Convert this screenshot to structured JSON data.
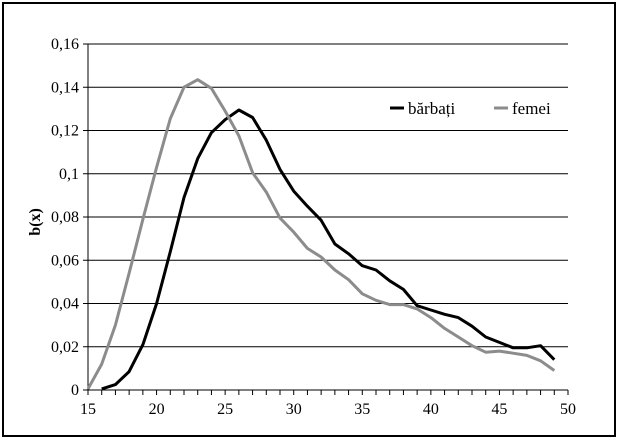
{
  "chart_data": {
    "type": "line",
    "title": "",
    "xlabel": "",
    "ylabel": "b(x)",
    "xlim": [
      15,
      50
    ],
    "ylim": [
      0,
      0.16
    ],
    "x_ticks": [
      "15",
      "20",
      "25",
      "30",
      "35",
      "40",
      "45",
      "50"
    ],
    "y_ticks": [
      "0",
      "0,02",
      "0,04",
      "0,06",
      "0,08",
      "0,1",
      "0,12",
      "0,14",
      "0,16"
    ],
    "grid": "horizontal",
    "legend_position": "top-right",
    "series": [
      {
        "name": "bărbați",
        "color": "#000000",
        "x": [
          16,
          17,
          18,
          19,
          20,
          21,
          22,
          23,
          24,
          25,
          26,
          27,
          28,
          29,
          30,
          31,
          32,
          33,
          34,
          35,
          36,
          37,
          38,
          39,
          40,
          41,
          42,
          43,
          44,
          45,
          46,
          47,
          48,
          49
        ],
        "y": [
          0.0005,
          0.0025,
          0.0085,
          0.021,
          0.04,
          0.064,
          0.089,
          0.107,
          0.119,
          0.125,
          0.1295,
          0.126,
          0.1155,
          0.102,
          0.092,
          0.085,
          0.0785,
          0.0675,
          0.063,
          0.0575,
          0.0555,
          0.0505,
          0.0465,
          0.039,
          0.037,
          0.035,
          0.0335,
          0.0295,
          0.0245,
          0.022,
          0.0195,
          0.0195,
          0.0205,
          0.014
        ]
      },
      {
        "name": "femei",
        "color": "#8c8c8c",
        "x": [
          15,
          16,
          17,
          18,
          19,
          20,
          21,
          22,
          23,
          24,
          25,
          26,
          27,
          28,
          29,
          30,
          31,
          32,
          33,
          34,
          35,
          36,
          37,
          38,
          39,
          40,
          41,
          42,
          43,
          44,
          45,
          46,
          47,
          48,
          49
        ],
        "y": [
          0.0005,
          0.012,
          0.03,
          0.054,
          0.079,
          0.103,
          0.1255,
          0.14,
          0.1435,
          0.1395,
          0.129,
          0.1175,
          0.1005,
          0.0915,
          0.0795,
          0.073,
          0.0655,
          0.0615,
          0.0555,
          0.051,
          0.0445,
          0.0415,
          0.0395,
          0.0395,
          0.0375,
          0.0335,
          0.0285,
          0.0245,
          0.0205,
          0.0175,
          0.018,
          0.017,
          0.016,
          0.0135,
          0.009
        ]
      }
    ]
  }
}
